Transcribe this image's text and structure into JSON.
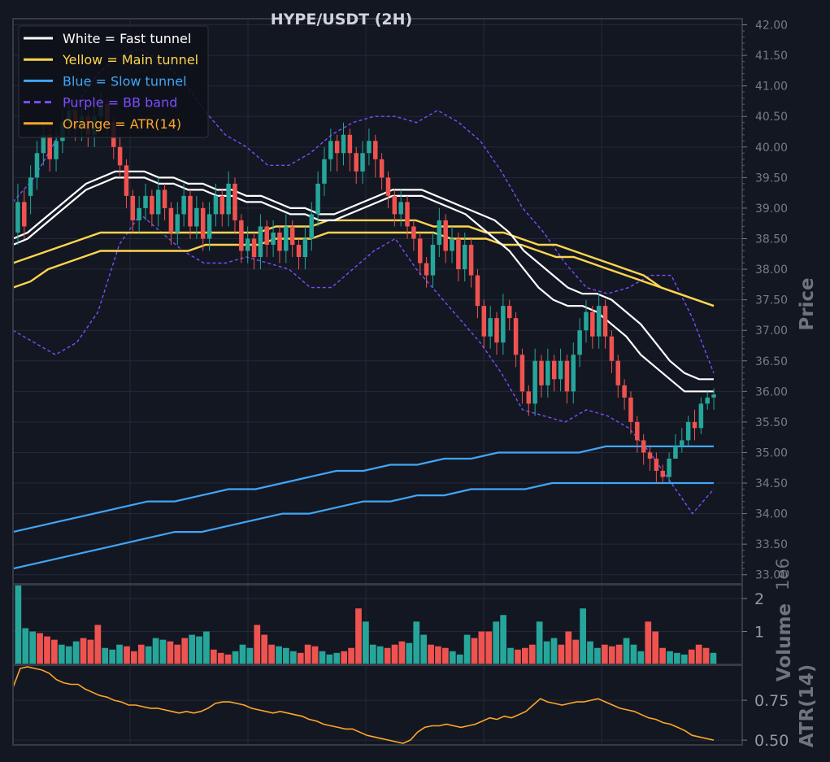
{
  "colors": {
    "background": "#131722",
    "grid": "#232936",
    "frame": "#363a45",
    "up": "#26a69a",
    "down": "#ef5350",
    "fast": "#ffffff",
    "main": "#ffd54f",
    "slow": "#42a5f5",
    "bb": "#7c4dff",
    "atr": "#ffa726"
  },
  "chart_data": {
    "type": "candlestick",
    "title": "HYPE/USDT (2H)",
    "price_axis": {
      "label": "Price",
      "range": [
        32.85,
        42.1
      ],
      "ticks": [
        "33.00",
        "33.50",
        "34.00",
        "34.50",
        "35.00",
        "35.50",
        "36.00",
        "36.50",
        "37.00",
        "37.50",
        "38.00",
        "38.50",
        "39.00",
        "39.50",
        "40.00",
        "40.50",
        "41.00",
        "41.50",
        "42.00"
      ]
    },
    "volume_axis": {
      "label": "Volume",
      "exponent_label": "1e6",
      "range": [
        0,
        2.42
      ],
      "ticks": [
        "1",
        "2"
      ]
    },
    "atr_axis": {
      "label": "ATR(14)",
      "range": [
        0.47,
        0.97
      ],
      "ticks": [
        "0.50",
        "0.75"
      ]
    },
    "legend": [
      {
        "label": "White = Fast tunnel",
        "color": "#ffffff",
        "style": "solid"
      },
      {
        "label": "Yellow = Main tunnel",
        "color": "#ffd54f",
        "style": "solid"
      },
      {
        "label": "Blue = Slow tunnel",
        "color": "#42a5f5",
        "style": "solid"
      },
      {
        "label": "Purple = BB band",
        "color": "#7c4dff",
        "style": "dashed"
      },
      {
        "label": "Orange = ATR(14)",
        "color": "#ffa726",
        "style": "solid"
      }
    ],
    "legend_position": "top-left",
    "grid": true,
    "candles": {
      "close": [
        39.1,
        38.7,
        39.5,
        39.9,
        40.2,
        39.8,
        40.1,
        40.4,
        40.6,
        40.3,
        40.5,
        40.2,
        40.5,
        40.7,
        40.4,
        40.0,
        39.7,
        39.2,
        38.8,
        39.0,
        39.2,
        38.9,
        39.3,
        39.0,
        38.6,
        38.9,
        39.2,
        38.7,
        39.0,
        38.5,
        38.9,
        39.2,
        38.9,
        39.4,
        38.8,
        38.3,
        38.5,
        38.2,
        38.7,
        38.4,
        38.6,
        38.3,
        38.7,
        38.4,
        38.2,
        38.5,
        38.9,
        39.4,
        39.8,
        40.1,
        39.9,
        40.2,
        39.9,
        39.6,
        39.9,
        40.1,
        39.8,
        39.5,
        39.2,
        38.9,
        39.1,
        38.7,
        38.5,
        38.1,
        37.9,
        38.4,
        38.8,
        38.3,
        38.5,
        38.0,
        38.4,
        37.9,
        37.4,
        36.9,
        37.2,
        36.8,
        37.4,
        37.2,
        36.6,
        36.0,
        35.8,
        36.5,
        36.1,
        36.5,
        36.2,
        36.5,
        36.0,
        36.6,
        37.0,
        37.3,
        36.9,
        37.4,
        36.9,
        36.5,
        36.1,
        35.9,
        35.5,
        35.2,
        35.0,
        34.9,
        34.7,
        34.6,
        34.9,
        35.1,
        35.2,
        35.5,
        35.4,
        35.8,
        35.9,
        35.95
      ],
      "open": [
        38.6,
        39.1,
        39.2,
        39.5,
        39.9,
        40.2,
        39.8,
        40.1,
        40.4,
        40.6,
        40.3,
        40.5,
        40.2,
        40.5,
        40.7,
        40.4,
        40.0,
        39.7,
        39.2,
        38.8,
        39.0,
        39.2,
        38.9,
        39.3,
        39.0,
        38.6,
        38.9,
        39.2,
        38.7,
        39.0,
        38.5,
        38.9,
        39.2,
        38.9,
        39.4,
        38.8,
        38.3,
        38.5,
        38.2,
        38.7,
        38.4,
        38.6,
        38.3,
        38.7,
        38.4,
        38.2,
        38.5,
        38.9,
        39.4,
        39.8,
        40.1,
        39.9,
        40.2,
        39.9,
        39.6,
        39.9,
        40.1,
        39.8,
        39.5,
        39.2,
        38.9,
        39.1,
        38.7,
        38.5,
        38.1,
        37.9,
        38.4,
        38.8,
        38.3,
        38.5,
        38.0,
        38.4,
        37.9,
        37.4,
        36.9,
        37.2,
        36.8,
        37.4,
        37.2,
        36.6,
        36.0,
        35.8,
        36.5,
        36.1,
        36.5,
        36.2,
        36.5,
        36.0,
        36.6,
        37.0,
        37.3,
        36.9,
        37.4,
        36.9,
        36.5,
        36.1,
        35.9,
        35.5,
        35.2,
        35.0,
        34.9,
        34.7,
        34.6,
        34.9,
        35.1,
        35.2,
        35.5,
        35.4,
        35.8,
        35.9
      ],
      "high": [
        39.4,
        39.3,
        39.7,
        40.1,
        40.4,
        40.3,
        40.3,
        40.6,
        40.8,
        40.7,
        40.7,
        40.6,
        40.7,
        40.9,
        40.8,
        40.5,
        40.2,
        39.8,
        39.3,
        39.2,
        39.4,
        39.3,
        39.5,
        39.4,
        39.1,
        39.1,
        39.4,
        39.3,
        39.2,
        39.1,
        39.1,
        39.4,
        39.3,
        39.6,
        39.5,
        38.9,
        38.7,
        38.6,
        38.9,
        38.8,
        38.8,
        38.7,
        38.9,
        38.8,
        38.5,
        38.7,
        39.1,
        39.6,
        40.0,
        40.3,
        40.2,
        40.4,
        40.3,
        40.0,
        40.1,
        40.3,
        40.2,
        39.9,
        39.6,
        39.3,
        39.3,
        39.2,
        38.8,
        38.6,
        38.2,
        38.6,
        39.0,
        38.9,
        38.7,
        38.6,
        38.6,
        38.5,
        38.0,
        37.5,
        37.4,
        37.3,
        37.6,
        37.5,
        37.3,
        36.7,
        36.1,
        36.7,
        36.6,
        36.7,
        36.6,
        36.7,
        36.6,
        36.8,
        37.2,
        37.5,
        37.4,
        37.6,
        37.5,
        37.0,
        36.6,
        36.2,
        36.0,
        35.6,
        35.3,
        35.1,
        35.0,
        34.8,
        35.0,
        35.3,
        35.4,
        35.6,
        35.7,
        35.9,
        36.0,
        36.05
      ],
      "low": [
        38.4,
        38.5,
        38.9,
        39.3,
        39.7,
        39.6,
        39.6,
        39.9,
        40.2,
        40.1,
        40.1,
        40.0,
        40.0,
        40.3,
        40.2,
        39.8,
        39.5,
        39.0,
        38.6,
        38.6,
        38.8,
        38.7,
        38.7,
        38.8,
        38.4,
        38.4,
        38.7,
        38.5,
        38.5,
        38.3,
        38.3,
        38.7,
        38.7,
        38.7,
        38.6,
        38.1,
        38.1,
        38.0,
        38.0,
        38.2,
        38.2,
        38.1,
        38.1,
        38.2,
        38.0,
        38.0,
        38.3,
        38.7,
        39.2,
        39.6,
        39.6,
        39.7,
        39.6,
        39.4,
        39.4,
        39.7,
        39.5,
        39.3,
        39.0,
        38.7,
        38.7,
        38.5,
        38.3,
        37.9,
        37.7,
        37.7,
        38.2,
        38.1,
        38.1,
        37.8,
        37.8,
        37.7,
        37.2,
        36.7,
        36.7,
        36.6,
        36.6,
        37.0,
        36.4,
        35.8,
        35.6,
        35.6,
        35.9,
        35.9,
        36.0,
        36.0,
        35.8,
        35.8,
        36.4,
        36.8,
        36.7,
        36.7,
        36.7,
        36.3,
        35.9,
        35.7,
        35.3,
        35.0,
        34.8,
        34.7,
        34.5,
        34.5,
        34.5,
        34.9,
        35.0,
        35.1,
        35.2,
        35.3,
        35.7,
        35.7
      ]
    },
    "fast_tunnel": {
      "upper": [
        38.5,
        38.6,
        38.8,
        39.0,
        39.2,
        39.4,
        39.5,
        39.6,
        39.6,
        39.6,
        39.5,
        39.5,
        39.4,
        39.4,
        39.3,
        39.3,
        39.2,
        39.2,
        39.1,
        39.0,
        39.0,
        38.9,
        38.9,
        39.0,
        39.1,
        39.2,
        39.3,
        39.3,
        39.3,
        39.2,
        39.1,
        39.0,
        38.9,
        38.8,
        38.6,
        38.3,
        38.1,
        37.9,
        37.7,
        37.6,
        37.6,
        37.5,
        37.3,
        37.1,
        36.8,
        36.5,
        36.3,
        36.2,
        36.2
      ],
      "lower": [
        38.4,
        38.5,
        38.7,
        38.9,
        39.1,
        39.3,
        39.4,
        39.5,
        39.5,
        39.5,
        39.4,
        39.4,
        39.3,
        39.3,
        39.2,
        39.2,
        39.1,
        39.1,
        39.0,
        38.9,
        38.9,
        38.8,
        38.8,
        38.9,
        39.0,
        39.1,
        39.2,
        39.2,
        39.2,
        39.1,
        39.0,
        38.9,
        38.7,
        38.5,
        38.3,
        38.0,
        37.7,
        37.5,
        37.4,
        37.4,
        37.3,
        37.1,
        36.9,
        36.6,
        36.4,
        36.2,
        36.0,
        36.0,
        36.0
      ]
    },
    "main_tunnel": {
      "upper": [
        38.1,
        38.2,
        38.3,
        38.4,
        38.5,
        38.6,
        38.6,
        38.6,
        38.6,
        38.6,
        38.6,
        38.6,
        38.6,
        38.6,
        38.6,
        38.7,
        38.7,
        38.7,
        38.8,
        38.8,
        38.8,
        38.8,
        38.8,
        38.8,
        38.7,
        38.7,
        38.7,
        38.6,
        38.6,
        38.5,
        38.4,
        38.4,
        38.3,
        38.2,
        38.1,
        38.0,
        37.9,
        37.7,
        37.6,
        37.5,
        37.4
      ],
      "lower": [
        37.7,
        37.8,
        38.0,
        38.1,
        38.2,
        38.3,
        38.3,
        38.3,
        38.3,
        38.3,
        38.3,
        38.4,
        38.4,
        38.4,
        38.4,
        38.5,
        38.5,
        38.5,
        38.6,
        38.6,
        38.6,
        38.6,
        38.6,
        38.6,
        38.6,
        38.5,
        38.5,
        38.5,
        38.4,
        38.4,
        38.3,
        38.2,
        38.2,
        38.1,
        38.0,
        37.9,
        37.8,
        37.7,
        37.6,
        37.5,
        37.4
      ]
    },
    "slow_tunnel": {
      "upper": [
        33.7,
        33.8,
        33.9,
        34.0,
        34.1,
        34.2,
        34.2,
        34.3,
        34.4,
        34.4,
        34.5,
        34.6,
        34.7,
        34.7,
        34.8,
        34.8,
        34.9,
        34.9,
        35.0,
        35.0,
        35.0,
        35.0,
        35.1,
        35.1,
        35.1,
        35.1,
        35.1
      ],
      "lower": [
        33.1,
        33.2,
        33.3,
        33.4,
        33.5,
        33.6,
        33.7,
        33.7,
        33.8,
        33.9,
        34.0,
        34.0,
        34.1,
        34.2,
        34.2,
        34.3,
        34.3,
        34.4,
        34.4,
        34.4,
        34.5,
        34.5,
        34.5,
        34.5,
        34.5,
        34.5,
        34.5
      ]
    },
    "bb_band": {
      "upper": [
        39.1,
        39.5,
        40.1,
        40.7,
        41.2,
        41.5,
        41.6,
        41.4,
        41.1,
        40.6,
        40.2,
        40.0,
        39.7,
        39.7,
        39.9,
        40.2,
        40.4,
        40.5,
        40.5,
        40.4,
        40.6,
        40.4,
        40.1,
        39.6,
        39.0,
        38.6,
        38.1,
        37.7,
        37.6,
        37.7,
        37.9,
        37.9,
        37.2,
        36.3
      ],
      "lower": [
        37.0,
        36.8,
        36.6,
        36.8,
        37.3,
        38.4,
        38.9,
        38.6,
        38.3,
        38.1,
        38.1,
        38.2,
        38.1,
        38.0,
        37.7,
        37.7,
        38.0,
        38.3,
        38.5,
        38.0,
        37.6,
        37.2,
        36.8,
        36.3,
        35.7,
        35.6,
        35.5,
        35.7,
        35.6,
        35.4,
        35.0,
        34.5,
        34.0,
        34.4
      ]
    },
    "volume": [
      2.4,
      1.1,
      1.0,
      0.95,
      0.85,
      0.75,
      0.6,
      0.55,
      0.7,
      0.8,
      0.75,
      1.2,
      0.5,
      0.45,
      0.6,
      0.55,
      0.4,
      0.6,
      0.55,
      0.8,
      0.75,
      0.7,
      0.6,
      0.8,
      0.9,
      0.85,
      1.0,
      0.45,
      0.35,
      0.3,
      0.4,
      0.6,
      0.5,
      1.2,
      0.9,
      0.6,
      0.55,
      0.5,
      0.4,
      0.35,
      0.6,
      0.55,
      0.4,
      0.3,
      0.35,
      0.4,
      0.5,
      1.7,
      1.3,
      0.6,
      0.55,
      0.5,
      0.6,
      0.7,
      0.65,
      1.3,
      0.9,
      0.6,
      0.55,
      0.5,
      0.4,
      0.3,
      0.9,
      0.8,
      1.0,
      1.0,
      1.3,
      1.5,
      0.5,
      0.45,
      0.5,
      0.6,
      1.3,
      0.7,
      0.8,
      0.6,
      1.0,
      0.75,
      1.7,
      0.7,
      0.5,
      0.6,
      0.55,
      0.6,
      0.8,
      0.6,
      0.4,
      1.3,
      1.0,
      0.5,
      0.4,
      0.35,
      0.3,
      0.45,
      0.6,
      0.5,
      0.35
    ],
    "atr": [
      0.83,
      0.95,
      0.96,
      0.95,
      0.94,
      0.92,
      0.88,
      0.86,
      0.85,
      0.85,
      0.82,
      0.8,
      0.78,
      0.77,
      0.75,
      0.74,
      0.72,
      0.72,
      0.71,
      0.7,
      0.7,
      0.69,
      0.68,
      0.67,
      0.68,
      0.67,
      0.68,
      0.7,
      0.73,
      0.74,
      0.74,
      0.73,
      0.72,
      0.7,
      0.69,
      0.68,
      0.67,
      0.68,
      0.67,
      0.66,
      0.65,
      0.63,
      0.62,
      0.6,
      0.59,
      0.58,
      0.57,
      0.57,
      0.55,
      0.53,
      0.52,
      0.51,
      0.5,
      0.49,
      0.48,
      0.5,
      0.55,
      0.58,
      0.59,
      0.59,
      0.6,
      0.59,
      0.58,
      0.59,
      0.6,
      0.62,
      0.64,
      0.63,
      0.65,
      0.64,
      0.66,
      0.68,
      0.72,
      0.76,
      0.74,
      0.73,
      0.72,
      0.73,
      0.74,
      0.74,
      0.75,
      0.76,
      0.74,
      0.72,
      0.7,
      0.69,
      0.68,
      0.66,
      0.64,
      0.63,
      0.61,
      0.6,
      0.58,
      0.56,
      0.53,
      0.52,
      0.51,
      0.5
    ]
  }
}
